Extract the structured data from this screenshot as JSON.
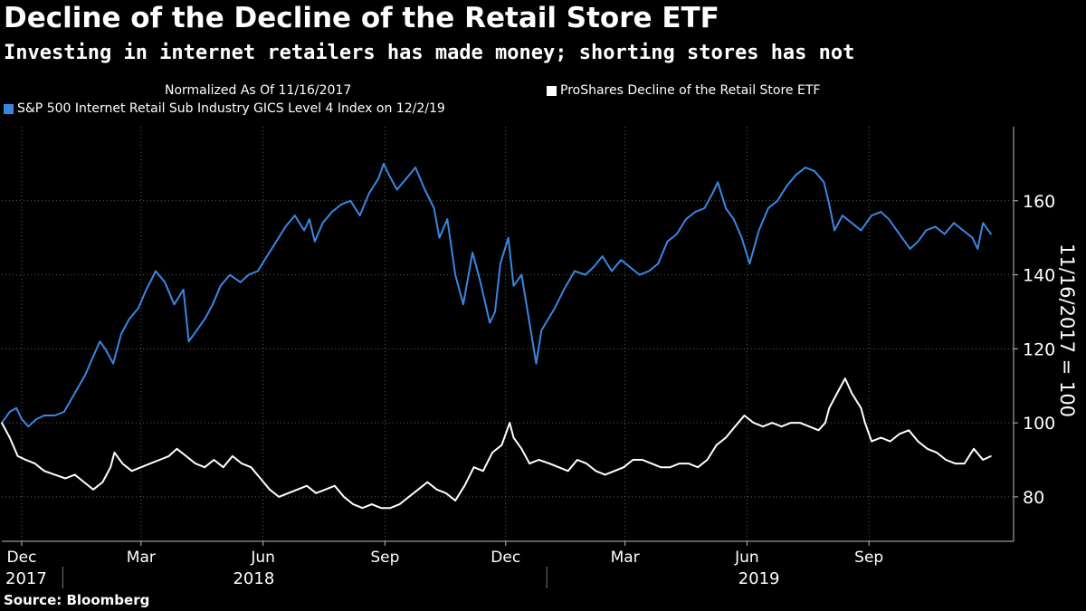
{
  "header": {
    "title": "Decline of the Decline of the Retail Store ETF",
    "subtitle": "Investing in internet retailers has made money; shorting stores has not"
  },
  "legend": {
    "note": "Normalized As Of 11/16/2017",
    "series_white_label": "ProShares Decline of the Retail Store ETF",
    "series_blue_label": "S&P 500 Internet Retail Sub Industry GICS Level 4 Index  on 12/2/19"
  },
  "footer": {
    "source": "Source: Bloomberg"
  },
  "colors": {
    "background": "#000000",
    "blue": "#3a86e0",
    "white": "#ffffff",
    "grid": "#5a5a5a"
  },
  "chart_data": {
    "type": "line",
    "ylabel": "11/16/2017 = 100",
    "ylim": [
      68,
      180
    ],
    "y_ticks": [
      80,
      100,
      120,
      140,
      160
    ],
    "xlim": [
      "2017-11-16",
      "2019-12-02"
    ],
    "x_month_ticks": [
      {
        "label": "Dec",
        "date": "2017-12-01"
      },
      {
        "label": "Mar",
        "date": "2018-03-01"
      },
      {
        "label": "Jun",
        "date": "2018-06-01"
      },
      {
        "label": "Sep",
        "date": "2018-09-01"
      },
      {
        "label": "Dec",
        "date": "2018-12-01"
      },
      {
        "label": "Mar",
        "date": "2019-03-01"
      },
      {
        "label": "Jun",
        "date": "2019-06-01"
      },
      {
        "label": "Sep",
        "date": "2019-09-01"
      }
    ],
    "x_year_labels": [
      {
        "label": "2017",
        "date": "2017-11-16"
      },
      {
        "label": "2018",
        "date": "2018-05-25"
      },
      {
        "label": "2019",
        "date": "2019-06-10"
      }
    ],
    "year_dividers": [
      "2018-01-01",
      "2019-01-01"
    ],
    "series": [
      {
        "name": "S&P 500 Internet Retail Sub Industry GICS Level 4 Index",
        "color": "#3a86e0",
        "points": [
          [
            "2017-11-16",
            100
          ],
          [
            "2017-11-22",
            103
          ],
          [
            "2017-11-27",
            104
          ],
          [
            "2017-12-01",
            101
          ],
          [
            "2017-12-06",
            99
          ],
          [
            "2017-12-12",
            101
          ],
          [
            "2017-12-18",
            102
          ],
          [
            "2017-12-26",
            102
          ],
          [
            "2018-01-02",
            103
          ],
          [
            "2018-01-10",
            108
          ],
          [
            "2018-01-18",
            113
          ],
          [
            "2018-01-24",
            118
          ],
          [
            "2018-01-29",
            122
          ],
          [
            "2018-02-02",
            120
          ],
          [
            "2018-02-08",
            116
          ],
          [
            "2018-02-14",
            124
          ],
          [
            "2018-02-20",
            128
          ],
          [
            "2018-02-27",
            131
          ],
          [
            "2018-03-05",
            136
          ],
          [
            "2018-03-12",
            141
          ],
          [
            "2018-03-19",
            138
          ],
          [
            "2018-03-26",
            132
          ],
          [
            "2018-04-02",
            136
          ],
          [
            "2018-04-06",
            122
          ],
          [
            "2018-04-12",
            125
          ],
          [
            "2018-04-18",
            128
          ],
          [
            "2018-04-24",
            132
          ],
          [
            "2018-04-30",
            137
          ],
          [
            "2018-05-07",
            140
          ],
          [
            "2018-05-15",
            138
          ],
          [
            "2018-05-21",
            140
          ],
          [
            "2018-05-28",
            141
          ],
          [
            "2018-06-04",
            145
          ],
          [
            "2018-06-11",
            149
          ],
          [
            "2018-06-18",
            153
          ],
          [
            "2018-06-25",
            156
          ],
          [
            "2018-07-02",
            152
          ],
          [
            "2018-07-06",
            155
          ],
          [
            "2018-07-10",
            149
          ],
          [
            "2018-07-16",
            154
          ],
          [
            "2018-07-23",
            157
          ],
          [
            "2018-07-30",
            159
          ],
          [
            "2018-08-06",
            160
          ],
          [
            "2018-08-13",
            156
          ],
          [
            "2018-08-20",
            162
          ],
          [
            "2018-08-27",
            166
          ],
          [
            "2018-08-31",
            170
          ],
          [
            "2018-09-04",
            167
          ],
          [
            "2018-09-10",
            163
          ],
          [
            "2018-09-17",
            166
          ],
          [
            "2018-09-24",
            169
          ],
          [
            "2018-10-01",
            163
          ],
          [
            "2018-10-08",
            158
          ],
          [
            "2018-10-12",
            150
          ],
          [
            "2018-10-18",
            155
          ],
          [
            "2018-10-24",
            140
          ],
          [
            "2018-10-30",
            132
          ],
          [
            "2018-11-06",
            146
          ],
          [
            "2018-11-12",
            138
          ],
          [
            "2018-11-19",
            127
          ],
          [
            "2018-11-23",
            130
          ],
          [
            "2018-11-27",
            143
          ],
          [
            "2018-12-03",
            150
          ],
          [
            "2018-12-07",
            137
          ],
          [
            "2018-12-13",
            140
          ],
          [
            "2018-12-19",
            127
          ],
          [
            "2018-12-24",
            116
          ],
          [
            "2018-12-28",
            125
          ],
          [
            "2019-01-07",
            131
          ],
          [
            "2019-01-14",
            136
          ],
          [
            "2019-01-22",
            141
          ],
          [
            "2019-01-30",
            140
          ],
          [
            "2019-02-05",
            142
          ],
          [
            "2019-02-12",
            145
          ],
          [
            "2019-02-19",
            141
          ],
          [
            "2019-02-26",
            144
          ],
          [
            "2019-03-05",
            142
          ],
          [
            "2019-03-12",
            140
          ],
          [
            "2019-03-19",
            141
          ],
          [
            "2019-03-26",
            143
          ],
          [
            "2019-04-02",
            149
          ],
          [
            "2019-04-09",
            151
          ],
          [
            "2019-04-16",
            155
          ],
          [
            "2019-04-23",
            157
          ],
          [
            "2019-04-30",
            158
          ],
          [
            "2019-05-06",
            162
          ],
          [
            "2019-05-10",
            165
          ],
          [
            "2019-05-16",
            158
          ],
          [
            "2019-05-22",
            155
          ],
          [
            "2019-05-28",
            150
          ],
          [
            "2019-06-03",
            143
          ],
          [
            "2019-06-10",
            152
          ],
          [
            "2019-06-17",
            158
          ],
          [
            "2019-06-24",
            160
          ],
          [
            "2019-07-01",
            164
          ],
          [
            "2019-07-08",
            167
          ],
          [
            "2019-07-15",
            169
          ],
          [
            "2019-07-22",
            168
          ],
          [
            "2019-07-29",
            165
          ],
          [
            "2019-08-02",
            159
          ],
          [
            "2019-08-06",
            152
          ],
          [
            "2019-08-12",
            156
          ],
          [
            "2019-08-19",
            154
          ],
          [
            "2019-08-26",
            152
          ],
          [
            "2019-09-03",
            156
          ],
          [
            "2019-09-10",
            157
          ],
          [
            "2019-09-16",
            155
          ],
          [
            "2019-09-20",
            153
          ],
          [
            "2019-09-26",
            150
          ],
          [
            "2019-10-02",
            147
          ],
          [
            "2019-10-08",
            149
          ],
          [
            "2019-10-14",
            152
          ],
          [
            "2019-10-21",
            153
          ],
          [
            "2019-10-28",
            151
          ],
          [
            "2019-11-04",
            154
          ],
          [
            "2019-11-11",
            152
          ],
          [
            "2019-11-18",
            150
          ],
          [
            "2019-11-22",
            147
          ],
          [
            "2019-11-26",
            154
          ],
          [
            "2019-12-02",
            151
          ]
        ]
      },
      {
        "name": "ProShares Decline of the Retail Store ETF",
        "color": "#ffffff",
        "points": [
          [
            "2017-11-16",
            100
          ],
          [
            "2017-11-22",
            96
          ],
          [
            "2017-11-28",
            91
          ],
          [
            "2017-12-04",
            90
          ],
          [
            "2017-12-11",
            89
          ],
          [
            "2017-12-18",
            87
          ],
          [
            "2017-12-26",
            86
          ],
          [
            "2018-01-03",
            85
          ],
          [
            "2018-01-10",
            86
          ],
          [
            "2018-01-17",
            84
          ],
          [
            "2018-01-24",
            82
          ],
          [
            "2018-01-31",
            84
          ],
          [
            "2018-02-06",
            88
          ],
          [
            "2018-02-09",
            92
          ],
          [
            "2018-02-15",
            89
          ],
          [
            "2018-02-22",
            87
          ],
          [
            "2018-03-01",
            88
          ],
          [
            "2018-03-08",
            89
          ],
          [
            "2018-03-15",
            90
          ],
          [
            "2018-03-22",
            91
          ],
          [
            "2018-03-28",
            93
          ],
          [
            "2018-04-04",
            91
          ],
          [
            "2018-04-11",
            89
          ],
          [
            "2018-04-18",
            88
          ],
          [
            "2018-04-25",
            90
          ],
          [
            "2018-05-02",
            88
          ],
          [
            "2018-05-09",
            91
          ],
          [
            "2018-05-16",
            89
          ],
          [
            "2018-05-23",
            88
          ],
          [
            "2018-05-30",
            85
          ],
          [
            "2018-06-06",
            82
          ],
          [
            "2018-06-13",
            80
          ],
          [
            "2018-06-20",
            81
          ],
          [
            "2018-06-27",
            82
          ],
          [
            "2018-07-04",
            83
          ],
          [
            "2018-07-11",
            81
          ],
          [
            "2018-07-18",
            82
          ],
          [
            "2018-07-25",
            83
          ],
          [
            "2018-08-01",
            80
          ],
          [
            "2018-08-08",
            78
          ],
          [
            "2018-08-15",
            77
          ],
          [
            "2018-08-22",
            78
          ],
          [
            "2018-08-29",
            77
          ],
          [
            "2018-09-05",
            77
          ],
          [
            "2018-09-12",
            78
          ],
          [
            "2018-09-19",
            80
          ],
          [
            "2018-09-26",
            82
          ],
          [
            "2018-10-03",
            84
          ],
          [
            "2018-10-10",
            82
          ],
          [
            "2018-10-17",
            81
          ],
          [
            "2018-10-24",
            79
          ],
          [
            "2018-10-31",
            83
          ],
          [
            "2018-11-07",
            88
          ],
          [
            "2018-11-14",
            87
          ],
          [
            "2018-11-21",
            92
          ],
          [
            "2018-11-28",
            94
          ],
          [
            "2018-12-04",
            100
          ],
          [
            "2018-12-07",
            96
          ],
          [
            "2018-12-13",
            93
          ],
          [
            "2018-12-19",
            89
          ],
          [
            "2018-12-26",
            90
          ],
          [
            "2019-01-03",
            89
          ],
          [
            "2019-01-10",
            88
          ],
          [
            "2019-01-17",
            87
          ],
          [
            "2019-01-24",
            90
          ],
          [
            "2019-01-31",
            89
          ],
          [
            "2019-02-07",
            87
          ],
          [
            "2019-02-14",
            86
          ],
          [
            "2019-02-21",
            87
          ],
          [
            "2019-02-28",
            88
          ],
          [
            "2019-03-07",
            90
          ],
          [
            "2019-03-14",
            90
          ],
          [
            "2019-03-21",
            89
          ],
          [
            "2019-03-28",
            88
          ],
          [
            "2019-04-04",
            88
          ],
          [
            "2019-04-11",
            89
          ],
          [
            "2019-04-18",
            89
          ],
          [
            "2019-04-25",
            88
          ],
          [
            "2019-05-02",
            90
          ],
          [
            "2019-05-09",
            94
          ],
          [
            "2019-05-16",
            96
          ],
          [
            "2019-05-23",
            99
          ],
          [
            "2019-05-30",
            102
          ],
          [
            "2019-06-06",
            100
          ],
          [
            "2019-06-13",
            99
          ],
          [
            "2019-06-20",
            100
          ],
          [
            "2019-06-27",
            99
          ],
          [
            "2019-07-04",
            100
          ],
          [
            "2019-07-11",
            100
          ],
          [
            "2019-07-18",
            99
          ],
          [
            "2019-07-25",
            98
          ],
          [
            "2019-07-30",
            100
          ],
          [
            "2019-08-02",
            104
          ],
          [
            "2019-08-08",
            108
          ],
          [
            "2019-08-14",
            112
          ],
          [
            "2019-08-19",
            108
          ],
          [
            "2019-08-26",
            104
          ],
          [
            "2019-08-29",
            100
          ],
          [
            "2019-09-03",
            95
          ],
          [
            "2019-09-10",
            96
          ],
          [
            "2019-09-17",
            95
          ],
          [
            "2019-09-24",
            97
          ],
          [
            "2019-10-01",
            98
          ],
          [
            "2019-10-08",
            95
          ],
          [
            "2019-10-15",
            93
          ],
          [
            "2019-10-22",
            92
          ],
          [
            "2019-10-29",
            90
          ],
          [
            "2019-11-05",
            89
          ],
          [
            "2019-11-12",
            89
          ],
          [
            "2019-11-19",
            93
          ],
          [
            "2019-11-26",
            90
          ],
          [
            "2019-12-02",
            91
          ]
        ]
      }
    ]
  }
}
